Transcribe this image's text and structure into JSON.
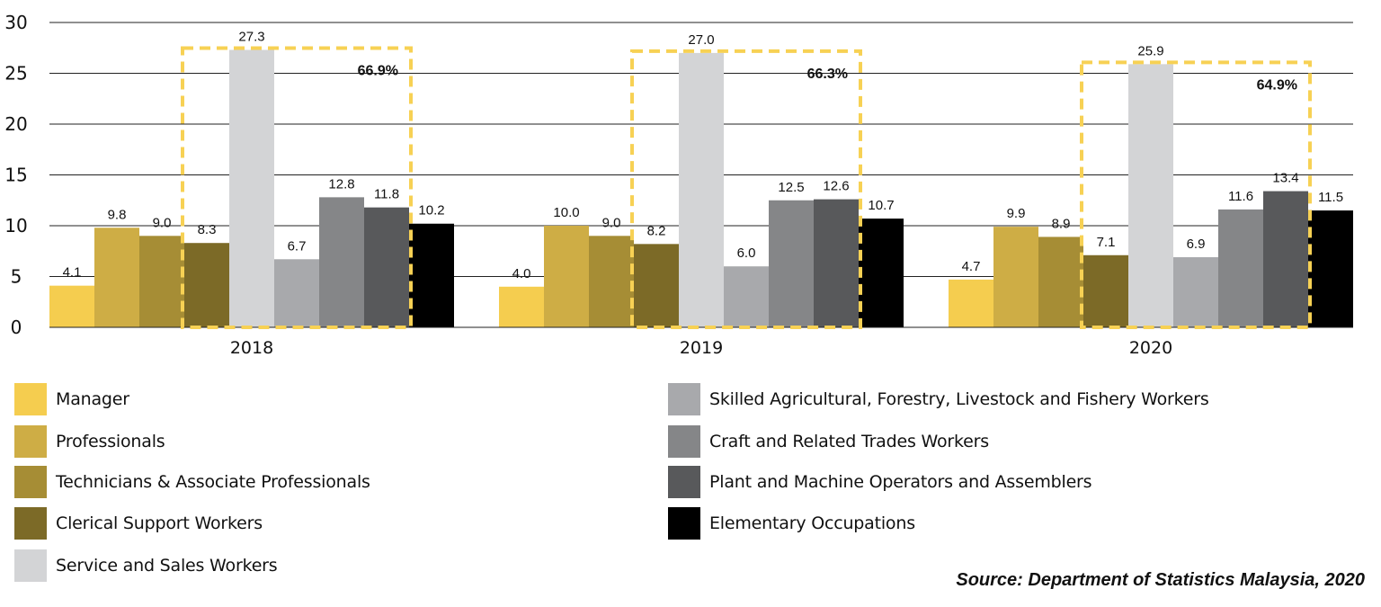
{
  "chart_data": {
    "type": "bar",
    "title": "",
    "xlabel": "",
    "ylabel": "",
    "ylim": [
      0,
      30
    ],
    "yticks": [
      0,
      5,
      10,
      15,
      20,
      25,
      30
    ],
    "grid": true,
    "categories": [
      "2018",
      "2019",
      "2020"
    ],
    "series": [
      {
        "name": "Manager",
        "color": "#f5cd4f",
        "values": [
          4.1,
          4.0,
          4.7
        ]
      },
      {
        "name": "Professionals",
        "color": "#cead45",
        "values": [
          9.8,
          10.0,
          9.9
        ]
      },
      {
        "name": "Technicians & Associate Professionals",
        "color": "#a68d35",
        "values": [
          9.0,
          9.0,
          8.9
        ]
      },
      {
        "name": "Clerical Support Workers",
        "color": "#7c6a27",
        "values": [
          8.3,
          8.2,
          7.1
        ]
      },
      {
        "name": "Service and Sales Workers",
        "color": "#d3d4d6",
        "values": [
          27.3,
          27.0,
          25.9
        ]
      },
      {
        "name": "Skilled Agricultural, Forestry, Livestock and Fishery Workers",
        "color": "#a8a9ac",
        "values": [
          6.7,
          6.0,
          6.9
        ]
      },
      {
        "name": "Craft and Related Trades Workers",
        "color": "#858688",
        "values": [
          12.8,
          12.5,
          11.6
        ]
      },
      {
        "name": "Plant and Machine Operators and Assemblers",
        "color": "#58595b",
        "values": [
          11.8,
          12.6,
          13.4
        ]
      },
      {
        "name": "Elementary Occupations",
        "color": "#000000",
        "values": [
          10.2,
          10.7,
          11.5
        ]
      }
    ],
    "annotations": [
      {
        "category": "2018",
        "text": "66.9%",
        "series_range": [
          "Clerical Support Workers",
          "Plant and Machine Operators and Assemblers"
        ]
      },
      {
        "category": "2019",
        "text": "66.3%",
        "series_range": [
          "Clerical Support Workers",
          "Plant and Machine Operators and Assemblers"
        ]
      },
      {
        "category": "2020",
        "text": "64.9%",
        "series_range": [
          "Clerical Support Workers",
          "Plant and Machine Operators and Assemblers"
        ]
      }
    ],
    "annotation_color": "#f7d154",
    "legend_position": "bottom"
  },
  "source": "Source: Department of Statistics Malaysia, 2020"
}
